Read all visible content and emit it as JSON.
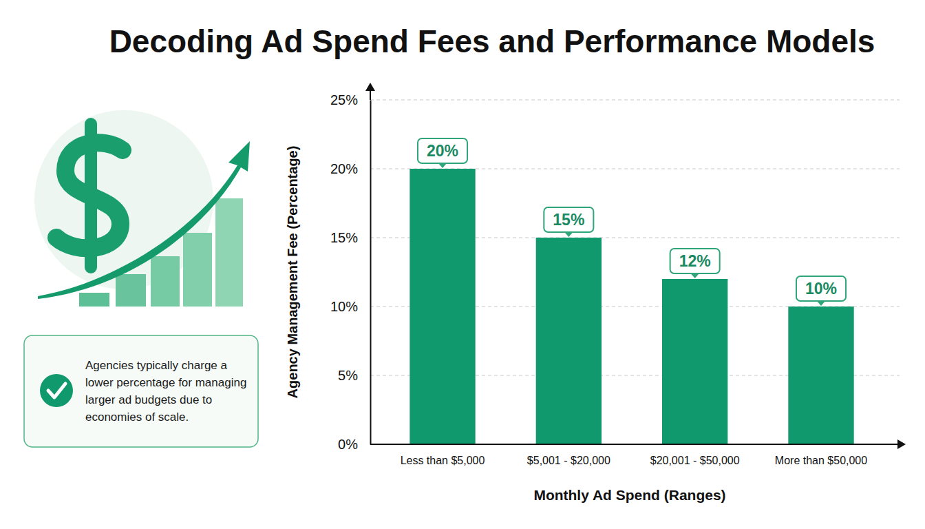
{
  "chart_data": {
    "type": "bar",
    "title": "Decoding Ad Spend Fees and Performance Models",
    "x_label": "Monthly Ad Spend (Ranges)",
    "y_label": "Agency Management Fee (Percentage)",
    "annotation": "Agencies typically charge a lower percentage for managing larger ad budgets due to economies of scale.",
    "categories": [
      "Less than $5,000",
      "$5,001 - $20,000",
      "$20,001 - $50,000",
      "More than $50,000"
    ],
    "values": [
      20,
      15,
      12,
      10
    ],
    "value_labels": [
      "20%",
      "15%",
      "12%",
      "10%"
    ],
    "color": "#11996e",
    "ylim": [
      0,
      25
    ],
    "yticks": [
      {
        "value": 0,
        "label": "0%"
      },
      {
        "value": 5,
        "label": "5%"
      },
      {
        "value": 10,
        "label": "10%"
      },
      {
        "value": 15,
        "label": "15%"
      },
      {
        "value": 20,
        "label": "20%"
      },
      {
        "value": 25,
        "label": "25%"
      }
    ],
    "grid": true,
    "data_labels": true
  }
}
